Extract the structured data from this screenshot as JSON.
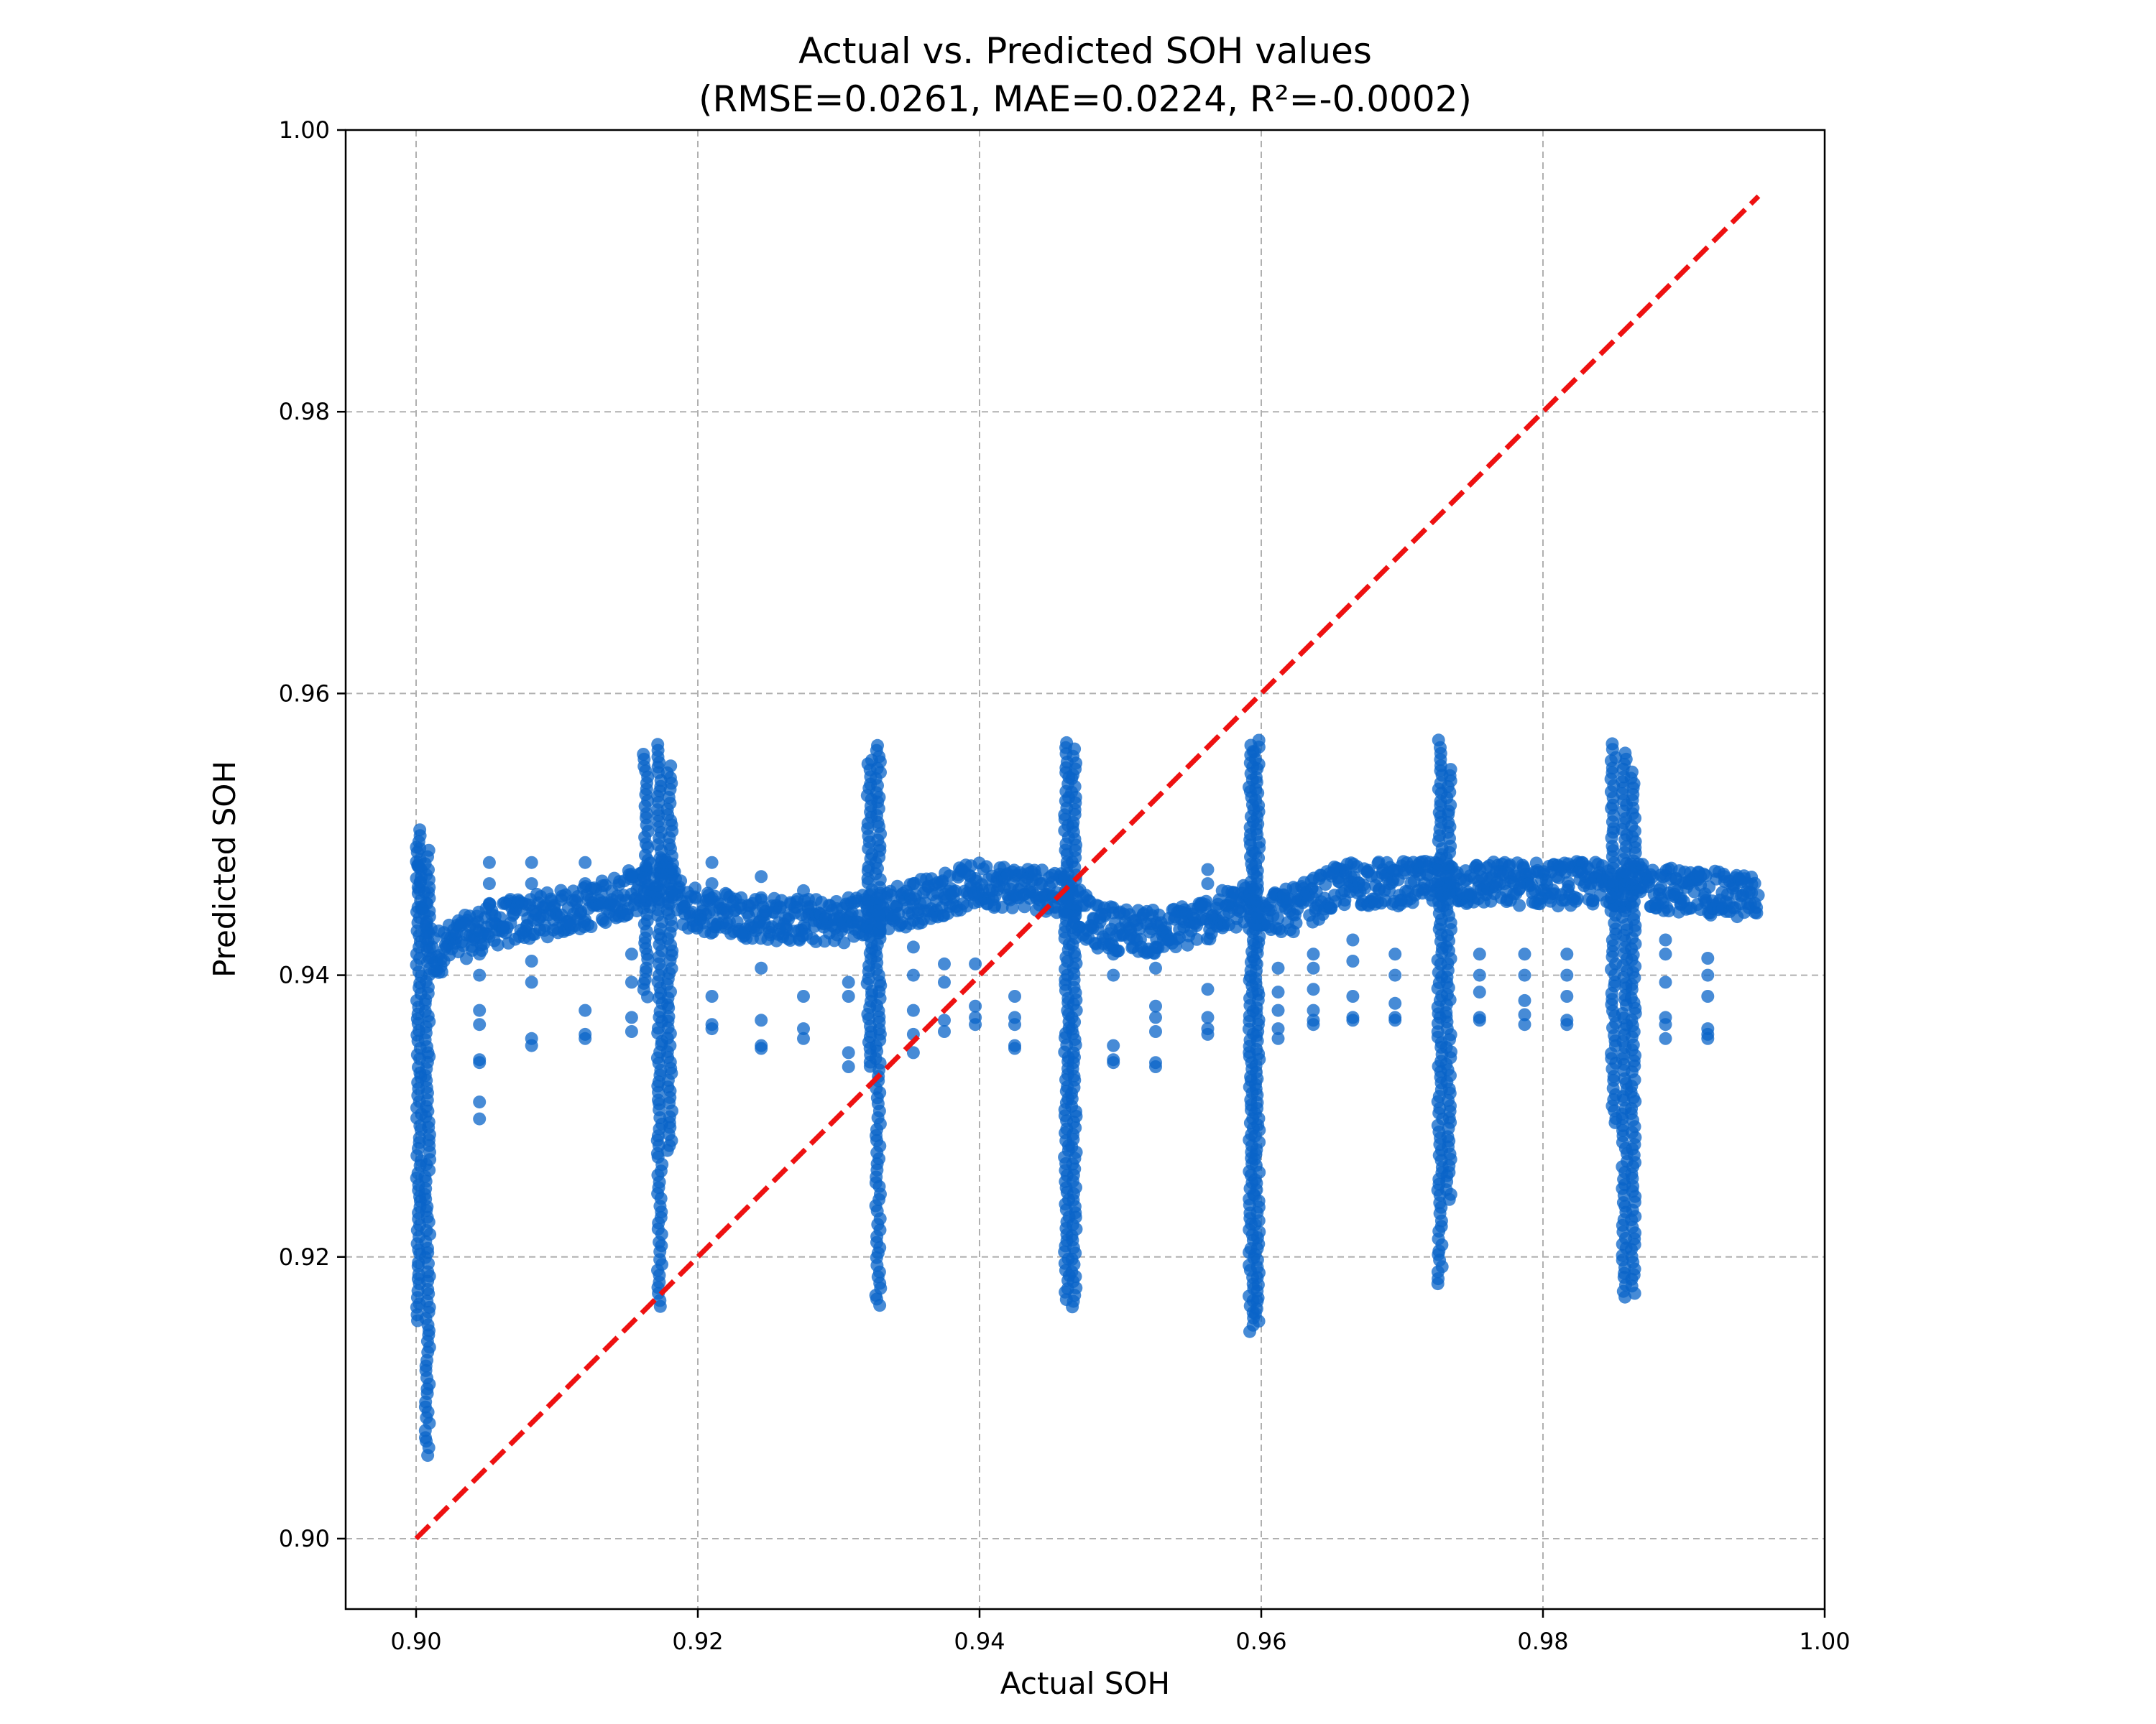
{
  "chart_data": {
    "type": "scatter",
    "title": "Actual vs. Predicted SOH values",
    "subtitle": "(RMSE=0.0261, MAE=0.0224,  R²=-0.0002)",
    "xlabel": "Actual SOH",
    "ylabel": "Predicted SOH",
    "xlim": [
      0.895,
      1.0
    ],
    "ylim": [
      0.895,
      1.0
    ],
    "x_ticks": [
      "0.90",
      "0.92",
      "0.94",
      "0.96",
      "0.98",
      "1.00"
    ],
    "y_ticks": [
      "0.90",
      "0.92",
      "0.94",
      "0.96",
      "0.98",
      "1.00"
    ],
    "grid": true,
    "legend": "none",
    "colors": {
      "points": "#0a64c8",
      "reference_line": "#ee1111",
      "grid": "#b0b0b0",
      "frame": "#000000"
    },
    "reference_line": {
      "x": [
        0.9,
        0.9953
      ],
      "y": [
        0.9,
        0.9953
      ],
      "style": "dashed"
    },
    "series": [
      {
        "points": {
          "x_range": [
            0.9,
            0.9953
          ],
          "baseline_segments": [
            [
              0.9,
              0.9475
            ],
            [
              0.9012,
              0.9415
            ],
            [
              0.905,
              0.9435
            ],
            [
              0.912,
              0.9448
            ],
            [
              0.916,
              0.9462
            ],
            [
              0.918,
              0.9468
            ],
            [
              0.919,
              0.9448
            ],
            [
              0.925,
              0.944
            ],
            [
              0.93,
              0.9438
            ],
            [
              0.933,
              0.9445
            ],
            [
              0.94,
              0.9465
            ],
            [
              0.946,
              0.946
            ],
            [
              0.948,
              0.9435
            ],
            [
              0.953,
              0.943
            ],
            [
              0.959,
              0.945
            ],
            [
              0.962,
              0.9445
            ],
            [
              0.966,
              0.9465
            ],
            [
              0.97,
              0.9465
            ],
            [
              0.976,
              0.9465
            ],
            [
              0.98,
              0.9465
            ],
            [
              0.985,
              0.9465
            ],
            [
              0.99,
              0.946
            ],
            [
              0.9953,
              0.9455
            ]
          ],
          "spikes": [
            {
              "x": 0.9002,
              "top": 0.9505,
              "bottom": 0.9155
            },
            {
              "x": 0.9008,
              "top": 0.949,
              "bottom": 0.906
            },
            {
              "x": 0.9163,
              "top": 0.956,
              "bottom": 0.9385
            },
            {
              "x": 0.9173,
              "top": 0.9565,
              "bottom": 0.9165
            },
            {
              "x": 0.918,
              "top": 0.955,
              "bottom": 0.9275
            },
            {
              "x": 0.9322,
              "top": 0.9555,
              "bottom": 0.9335
            },
            {
              "x": 0.9328,
              "top": 0.9568,
              "bottom": 0.9165
            },
            {
              "x": 0.9462,
              "top": 0.9565,
              "bottom": 0.917
            },
            {
              "x": 0.9467,
              "top": 0.956,
              "bottom": 0.9165
            },
            {
              "x": 0.9593,
              "top": 0.9565,
              "bottom": 0.9148
            },
            {
              "x": 0.9597,
              "top": 0.957,
              "bottom": 0.9155
            },
            {
              "x": 0.9727,
              "top": 0.957,
              "bottom": 0.918
            },
            {
              "x": 0.9733,
              "top": 0.955,
              "bottom": 0.924
            },
            {
              "x": 0.985,
              "top": 0.9565,
              "bottom": 0.9295
            },
            {
              "x": 0.9858,
              "top": 0.956,
              "bottom": 0.9172
            },
            {
              "x": 0.9864,
              "top": 0.9545,
              "bottom": 0.9175
            }
          ],
          "outlier_columns": [
            {
              "x": 0.9045,
              "y": [
                0.9415,
                0.94,
                0.9375,
                0.9365,
                0.934,
                0.9338,
                0.931,
                0.9298
              ]
            },
            {
              "x": 0.9052,
              "y": [
                0.948,
                0.9465,
                0.945
              ]
            },
            {
              "x": 0.9082,
              "y": [
                0.948,
                0.9465,
                0.941,
                0.9395,
                0.9355,
                0.935
              ]
            },
            {
              "x": 0.912,
              "y": [
                0.948,
                0.9465,
                0.9375,
                0.9358,
                0.9355
              ]
            },
            {
              "x": 0.9153,
              "y": [
                0.947,
                0.9415,
                0.9395,
                0.937,
                0.936
              ]
            },
            {
              "x": 0.921,
              "y": [
                0.948,
                0.9465,
                0.9385,
                0.9365,
                0.9362
              ]
            },
            {
              "x": 0.9245,
              "y": [
                0.947,
                0.9455,
                0.9405,
                0.9368,
                0.935,
                0.9348
              ]
            },
            {
              "x": 0.9275,
              "y": [
                0.946,
                0.9385,
                0.9362,
                0.9355
              ]
            },
            {
              "x": 0.9307,
              "y": [
                0.9455,
                0.9395,
                0.9385,
                0.9345,
                0.9335
              ]
            },
            {
              "x": 0.9353,
              "y": [
                0.9465,
                0.942,
                0.94,
                0.9375,
                0.9358,
                0.9345
              ]
            },
            {
              "x": 0.9375,
              "y": [
                0.9455,
                0.9408,
                0.9395,
                0.9368,
                0.936
              ]
            },
            {
              "x": 0.9397,
              "y": [
                0.9408,
                0.9378,
                0.937,
                0.9365
              ]
            },
            {
              "x": 0.9425,
              "y": [
                0.9385,
                0.937,
                0.9365,
                0.935,
                0.9348
              ]
            },
            {
              "x": 0.9495,
              "y": [
                0.9415,
                0.94,
                0.935,
                0.934,
                0.9338
              ]
            },
            {
              "x": 0.9525,
              "y": [
                0.942,
                0.9405,
                0.9378,
                0.937,
                0.936,
                0.9338,
                0.9335
              ]
            },
            {
              "x": 0.9562,
              "y": [
                0.9475,
                0.9465,
                0.939,
                0.937,
                0.9362,
                0.9358
              ]
            },
            {
              "x": 0.9612,
              "y": [
                0.9405,
                0.9388,
                0.9375,
                0.9362,
                0.9355
              ]
            },
            {
              "x": 0.9637,
              "y": [
                0.9415,
                0.9405,
                0.939,
                0.9375,
                0.9368,
                0.9365
              ]
            },
            {
              "x": 0.9665,
              "y": [
                0.9425,
                0.941,
                0.9385,
                0.937,
                0.9368
              ]
            },
            {
              "x": 0.9695,
              "y": [
                0.9415,
                0.94,
                0.938,
                0.937,
                0.9368
              ]
            },
            {
              "x": 0.9755,
              "y": [
                0.9415,
                0.94,
                0.9388,
                0.937,
                0.9368
              ]
            },
            {
              "x": 0.9787,
              "y": [
                0.9415,
                0.94,
                0.9382,
                0.9372,
                0.9365
              ]
            },
            {
              "x": 0.9817,
              "y": [
                0.9415,
                0.94,
                0.9385,
                0.9368,
                0.9365
              ]
            },
            {
              "x": 0.9887,
              "y": [
                0.9425,
                0.9415,
                0.9395,
                0.937,
                0.9365,
                0.9355
              ]
            },
            {
              "x": 0.9917,
              "y": [
                0.9412,
                0.94,
                0.9385,
                0.9362,
                0.9358,
                0.9355
              ]
            }
          ]
        }
      }
    ]
  }
}
